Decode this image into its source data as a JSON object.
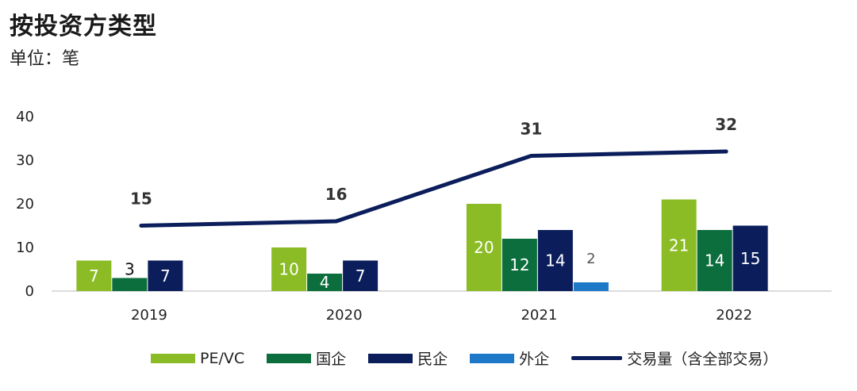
{
  "title": "按投资方类型",
  "subtitle": "单位：笔",
  "chart_data": {
    "type": "bar",
    "categories": [
      "2019",
      "2020",
      "2021",
      "2022"
    ],
    "ylim": [
      0,
      40
    ],
    "yticks": [
      0,
      10,
      20,
      30,
      40
    ],
    "grid": false,
    "legend_position": "bottom",
    "series": [
      {
        "name": "PE/VC",
        "values": [
          7,
          10,
          20,
          21
        ],
        "color": "#8BBC25"
      },
      {
        "name": "国企",
        "values": [
          3,
          4,
          12,
          14
        ],
        "color": "#0B6E3C"
      },
      {
        "name": "民企",
        "values": [
          7,
          7,
          14,
          15
        ],
        "color": "#0B1E5B"
      },
      {
        "name": "外企",
        "values": [
          null,
          null,
          2,
          null
        ],
        "color": "#1E78C8"
      }
    ],
    "line_series": {
      "name": "交易量（含全部交易）",
      "values": [
        15,
        16,
        31,
        32
      ],
      "color": "#0B1E5B"
    }
  }
}
